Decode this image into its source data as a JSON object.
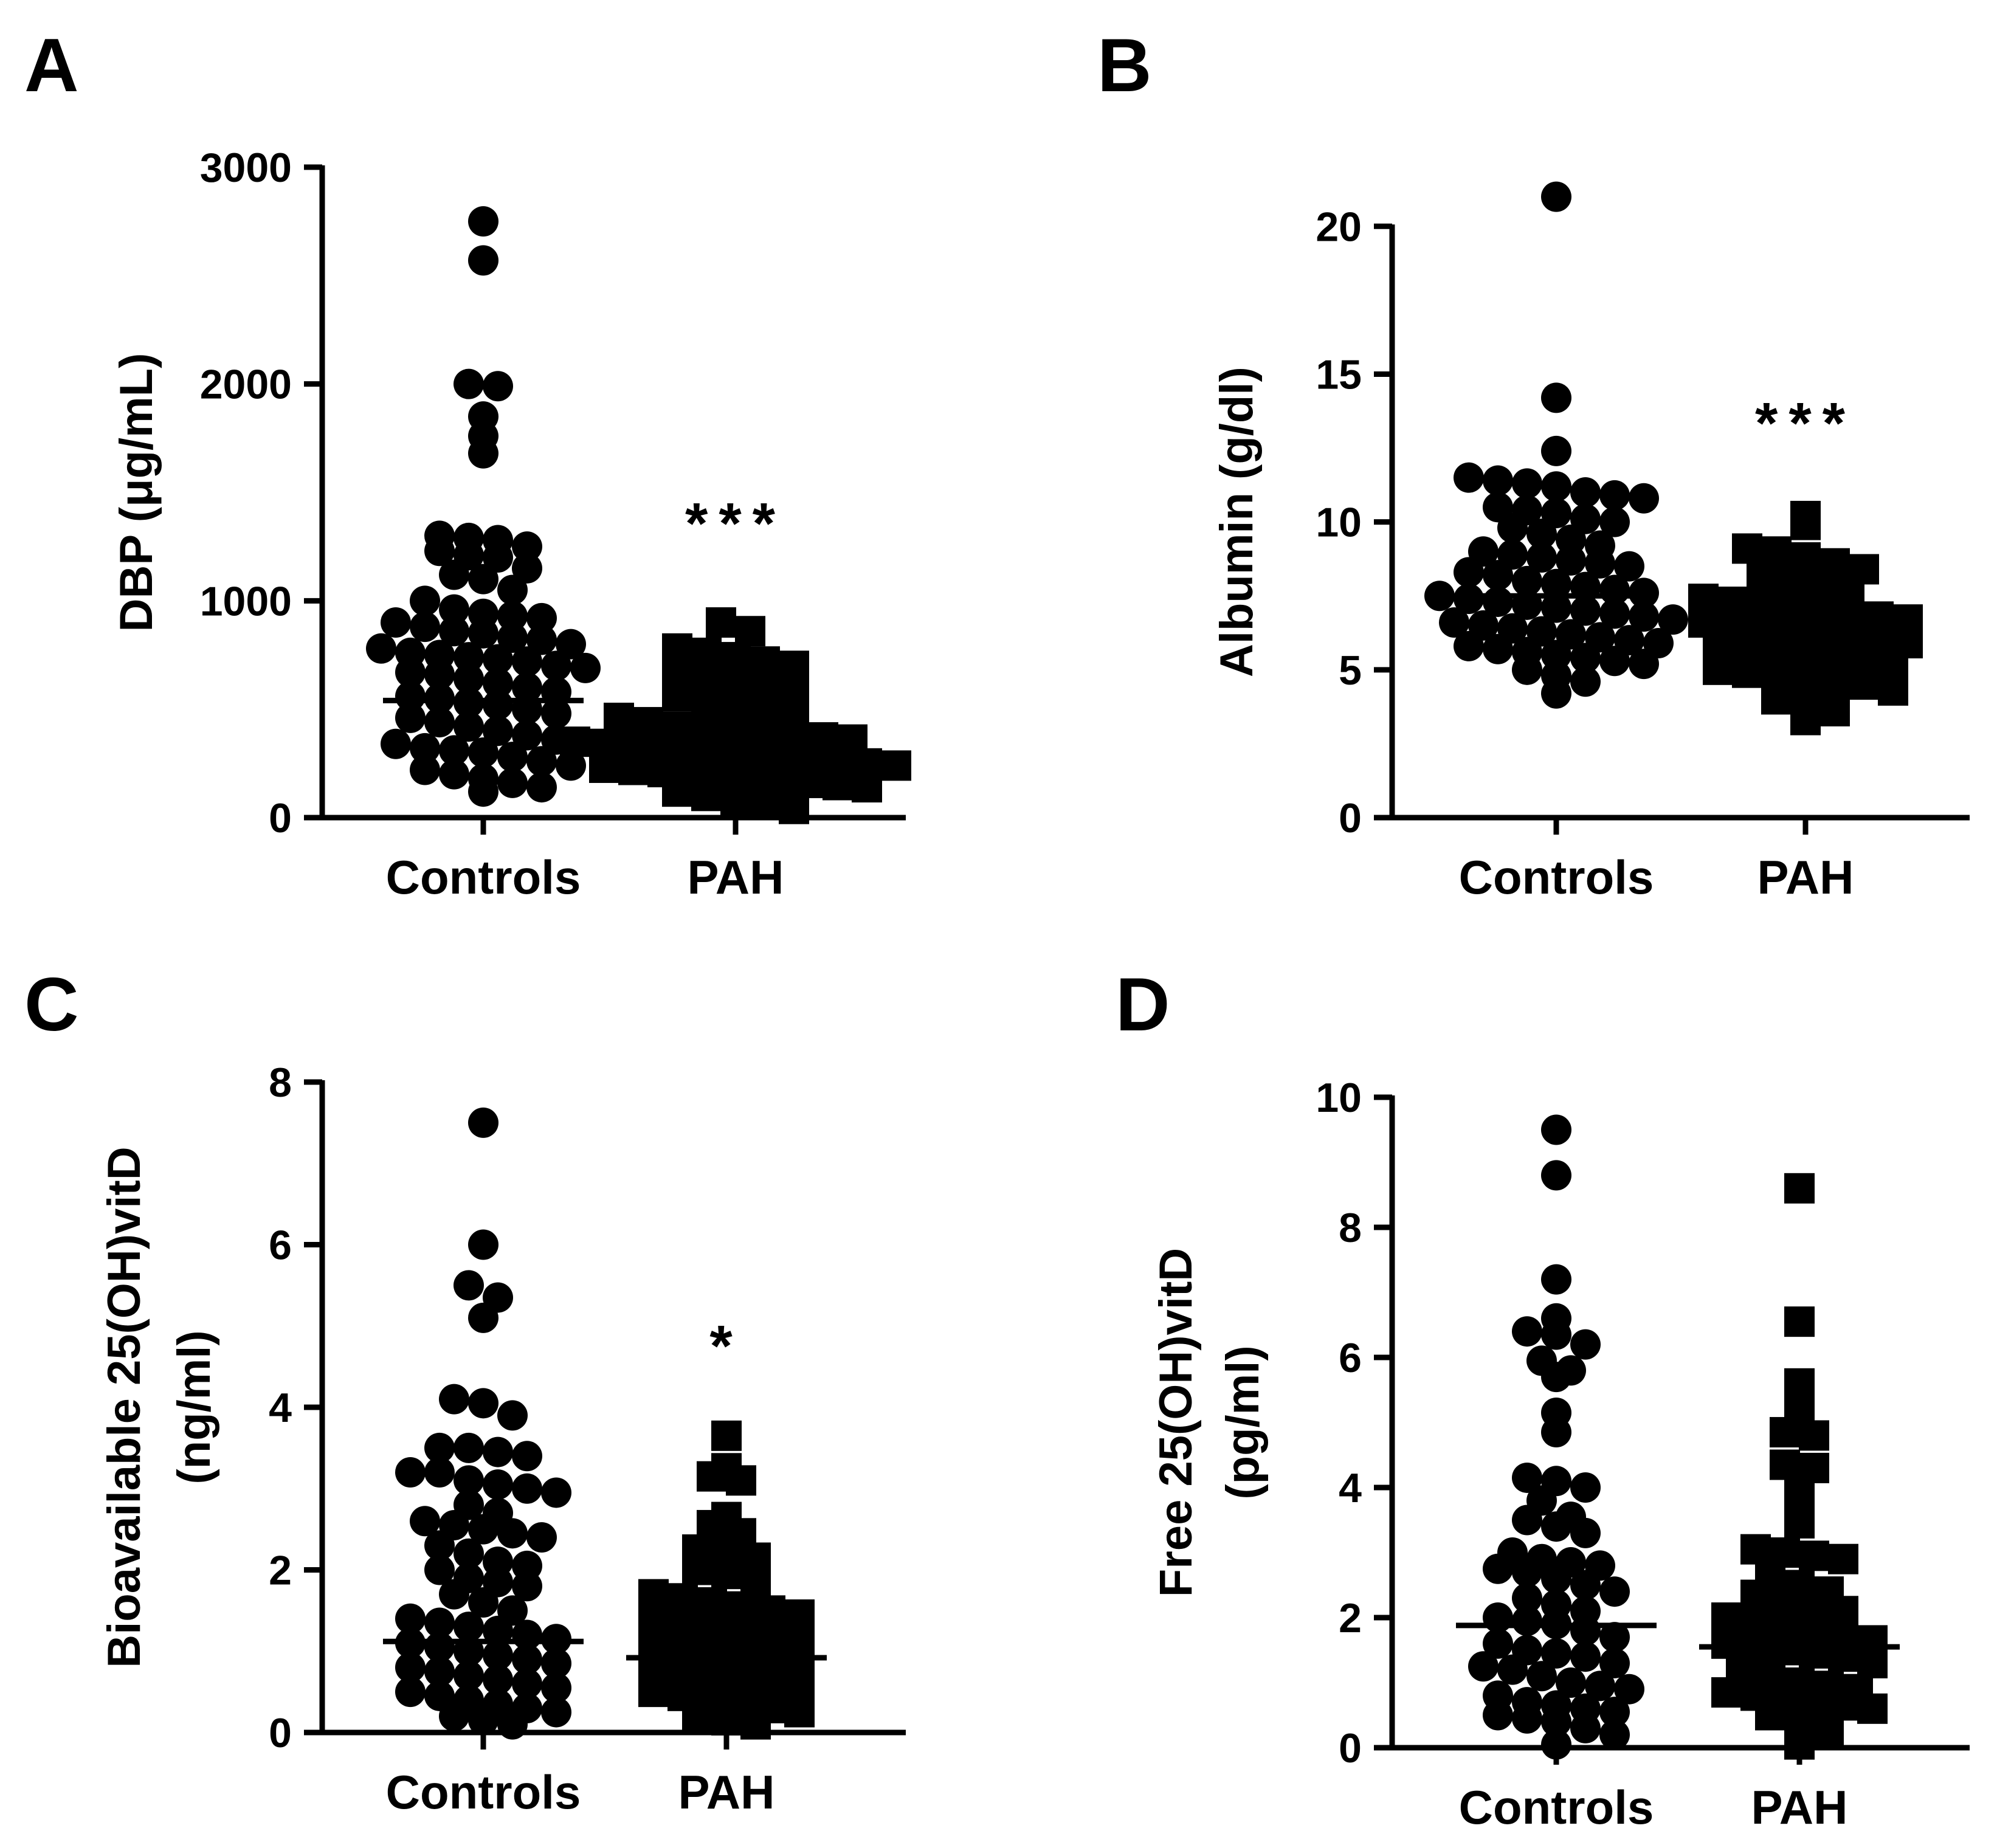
{
  "chart_data": [
    {
      "panel": "A",
      "type": "scatter",
      "ylabel": "DBP (μg/mL)",
      "categories": [
        "Controls",
        "PAH"
      ],
      "ylim": [
        0,
        3000
      ],
      "yticks": [
        0,
        1000,
        2000,
        3000
      ],
      "ytick_labels": [
        "0",
        "1000",
        "2000",
        "3000"
      ],
      "significance": "***",
      "series": [
        {
          "name": "Controls",
          "marker": "circle",
          "median": 540,
          "values": [
            2750,
            2570,
            2000,
            1990,
            1850,
            1760,
            1680,
            1300,
            1290,
            1280,
            1250,
            1230,
            1210,
            1200,
            1150,
            1120,
            1100,
            1050,
            1000,
            960,
            940,
            930,
            920,
            900,
            880,
            860,
            850,
            830,
            820,
            800,
            780,
            760,
            750,
            740,
            730,
            720,
            700,
            690,
            670,
            660,
            640,
            620,
            600,
            580,
            560,
            550,
            530,
            520,
            500,
            480,
            460,
            440,
            420,
            400,
            380,
            360,
            340,
            320,
            310,
            300,
            280,
            260,
            240,
            220,
            200,
            180,
            160,
            140,
            120
          ]
        },
        {
          "name": "PAH",
          "marker": "square",
          "median": 340,
          "values": [
            900,
            860,
            780,
            760,
            740,
            720,
            700,
            680,
            640,
            620,
            600,
            580,
            560,
            540,
            520,
            500,
            480,
            460,
            440,
            420,
            410,
            400,
            390,
            380,
            370,
            360,
            350,
            340,
            330,
            320,
            310,
            300,
            290,
            280,
            270,
            260,
            250,
            240,
            230,
            220,
            210,
            200,
            190,
            180,
            170,
            160,
            150,
            140,
            120,
            100,
            80,
            60,
            40
          ]
        }
      ]
    },
    {
      "panel": "B",
      "type": "scatter",
      "ylabel": "Albumin (g/dl)",
      "categories": [
        "Controls",
        "PAH"
      ],
      "ylim": [
        0,
        22
      ],
      "yticks": [
        0,
        5,
        10,
        15,
        20
      ],
      "ytick_labels": [
        "0",
        "5",
        "10",
        "15",
        "20"
      ],
      "significance": "***",
      "series": [
        {
          "name": "Controls",
          "marker": "circle",
          "median": 7.5,
          "values": [
            21.0,
            14.2,
            12.4,
            11.5,
            11.4,
            11.3,
            11.2,
            11.0,
            10.9,
            10.8,
            10.5,
            10.4,
            10.3,
            10.1,
            10.0,
            9.8,
            9.6,
            9.4,
            9.2,
            9.0,
            8.9,
            8.8,
            8.7,
            8.6,
            8.5,
            8.3,
            8.2,
            8.0,
            7.9,
            7.8,
            7.7,
            7.6,
            7.5,
            7.4,
            7.3,
            7.2,
            7.1,
            7.0,
            6.9,
            6.8,
            6.7,
            6.6,
            6.5,
            6.4,
            6.3,
            6.2,
            6.1,
            6.0,
            5.9,
            5.8,
            5.7,
            5.6,
            5.5,
            5.4,
            5.3,
            5.2,
            5.0,
            4.8,
            4.6,
            4.2
          ]
        },
        {
          "name": "PAH",
          "marker": "square",
          "median": 6.3,
          "values": [
            10.2,
            9.9,
            9.1,
            9.0,
            8.8,
            8.6,
            8.4,
            8.2,
            8.0,
            7.8,
            7.6,
            7.4,
            7.3,
            7.2,
            7.1,
            7.0,
            6.9,
            6.8,
            6.7,
            6.6,
            6.5,
            6.4,
            6.3,
            6.2,
            6.1,
            6.0,
            5.9,
            5.8,
            5.7,
            5.6,
            5.5,
            5.4,
            5.3,
            5.2,
            5.0,
            4.9,
            4.8,
            4.7,
            4.6,
            4.5,
            4.3,
            4.0,
            3.8,
            3.6,
            3.3
          ]
        }
      ]
    },
    {
      "panel": "C",
      "type": "scatter",
      "ylabel": "Bioavailable 25(OH)vitD",
      "ylabel2": "(ng/ml)",
      "categories": [
        "Controls",
        "PAH"
      ],
      "ylim": [
        0,
        8
      ],
      "yticks": [
        0,
        2,
        4,
        6,
        8
      ],
      "ytick_labels": [
        "0",
        "2",
        "4",
        "6",
        "8"
      ],
      "significance": "*",
      "series": [
        {
          "name": "Controls",
          "marker": "circle",
          "median": 1.12,
          "values": [
            7.5,
            6.0,
            5.5,
            5.35,
            5.1,
            4.1,
            4.05,
            3.9,
            3.5,
            3.5,
            3.45,
            3.4,
            3.2,
            3.2,
            3.1,
            3.05,
            3.0,
            2.95,
            2.8,
            2.7,
            2.6,
            2.55,
            2.5,
            2.45,
            2.4,
            2.3,
            2.2,
            2.1,
            2.05,
            2.0,
            1.9,
            1.85,
            1.8,
            1.7,
            1.6,
            1.5,
            1.4,
            1.35,
            1.3,
            1.25,
            1.2,
            1.15,
            1.1,
            1.05,
            1.0,
            0.95,
            0.9,
            0.85,
            0.8,
            0.75,
            0.7,
            0.65,
            0.6,
            0.55,
            0.5,
            0.45,
            0.4,
            0.35,
            0.3,
            0.25,
            0.2,
            0.15,
            0.1
          ]
        },
        {
          "name": "PAH",
          "marker": "square",
          "median": 0.92,
          "values": [
            3.65,
            3.25,
            3.15,
            3.1,
            2.65,
            2.55,
            2.45,
            2.25,
            2.2,
            2.15,
            2.0,
            1.95,
            1.8,
            1.7,
            1.65,
            1.6,
            1.55,
            1.5,
            1.45,
            1.4,
            1.35,
            1.3,
            1.25,
            1.2,
            1.15,
            1.1,
            1.05,
            1.0,
            0.95,
            0.9,
            0.85,
            0.8,
            0.75,
            0.7,
            0.65,
            0.6,
            0.55,
            0.5,
            0.45,
            0.4,
            0.35,
            0.3,
            0.25,
            0.2,
            0.15,
            0.1
          ]
        }
      ]
    },
    {
      "panel": "D",
      "type": "scatter",
      "ylabel": "Free 25(OH)vitD",
      "ylabel2": "(pg/ml)",
      "categories": [
        "Controls",
        "PAH"
      ],
      "ylim": [
        0,
        10
      ],
      "yticks": [
        0,
        2,
        4,
        6,
        8,
        10
      ],
      "ytick_labels": [
        "0",
        "2",
        "4",
        "6",
        "8",
        "10"
      ],
      "significance": "",
      "series": [
        {
          "name": "Controls",
          "marker": "circle",
          "median": 1.88,
          "values": [
            9.5,
            8.8,
            7.2,
            6.6,
            6.4,
            6.35,
            6.2,
            5.95,
            5.8,
            5.7,
            5.15,
            4.85,
            4.15,
            4.1,
            4.0,
            3.8,
            3.55,
            3.5,
            3.4,
            3.3,
            3.0,
            2.9,
            2.85,
            2.8,
            2.75,
            2.7,
            2.6,
            2.5,
            2.4,
            2.3,
            2.2,
            2.1,
            2.0,
            1.95,
            1.9,
            1.8,
            1.7,
            1.6,
            1.5,
            1.45,
            1.4,
            1.3,
            1.25,
            1.2,
            1.1,
            1.0,
            0.95,
            0.9,
            0.8,
            0.7,
            0.65,
            0.6,
            0.55,
            0.5,
            0.45,
            0.4,
            0.3,
            0.2,
            0.05
          ]
        },
        {
          "name": "PAH",
          "marker": "square",
          "median": 1.55,
          "values": [
            8.6,
            6.55,
            5.6,
            5.2,
            4.85,
            4.8,
            4.35,
            4.3,
            3.9,
            3.45,
            3.05,
            3.0,
            2.95,
            2.9,
            2.6,
            2.5,
            2.4,
            2.35,
            2.3,
            2.2,
            2.1,
            2.0,
            1.95,
            1.9,
            1.8,
            1.7,
            1.65,
            1.6,
            1.55,
            1.5,
            1.45,
            1.4,
            1.3,
            1.2,
            1.1,
            1.0,
            0.95,
            0.9,
            0.85,
            0.8,
            0.75,
            0.7,
            0.65,
            0.6,
            0.5,
            0.4,
            0.25,
            0.05
          ]
        }
      ]
    }
  ]
}
